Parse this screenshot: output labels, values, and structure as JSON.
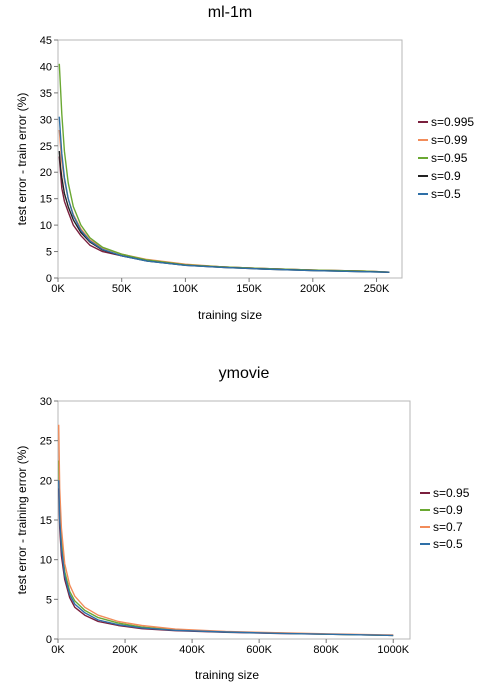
{
  "chart_data": [
    {
      "type": "line",
      "title": "ml-1m",
      "xlabel": "training size",
      "ylabel": "test error - train error (%)",
      "xlim": [
        0,
        270000
      ],
      "ylim": [
        0,
        45
      ],
      "xticks": [
        0,
        50000,
        100000,
        150000,
        200000,
        250000
      ],
      "xtick_labels": [
        "0K",
        "50K",
        "100K",
        "150K",
        "200K",
        "250K"
      ],
      "yticks": [
        0,
        5,
        10,
        15,
        20,
        25,
        30,
        35,
        40,
        45
      ],
      "ytick_labels": [
        "0",
        "5",
        "10",
        "15",
        "20",
        "25",
        "30",
        "35",
        "40",
        "45"
      ],
      "grid": false,
      "legend_position": "right",
      "series": [
        {
          "name": "s=0.995",
          "color": "#7a1f3d",
          "x": [
            1000,
            2000,
            3000,
            5000,
            8000,
            12000,
            18000,
            25000,
            35000,
            50000,
            70000,
            100000,
            130000,
            160000,
            200000,
            240000,
            260000
          ],
          "y": [
            23,
            20,
            17,
            14.5,
            12.5,
            10,
            8,
            6.2,
            5,
            4.2,
            3.3,
            2.5,
            2.1,
            1.8,
            1.5,
            1.3,
            1.1
          ]
        },
        {
          "name": "s=0.99",
          "color": "#f28c5a",
          "x": [
            1000,
            2000,
            3000,
            5000,
            8000,
            12000,
            18000,
            25000,
            35000,
            50000,
            70000,
            100000,
            130000,
            160000,
            200000,
            240000,
            260000
          ],
          "y": [
            28,
            25,
            22,
            18.5,
            15,
            12,
            9.3,
            7.2,
            5.7,
            4.5,
            3.5,
            2.6,
            2.1,
            1.8,
            1.5,
            1.3,
            1.1
          ]
        },
        {
          "name": "s=0.95",
          "color": "#6aa832",
          "x": [
            1000,
            2000,
            3000,
            5000,
            8000,
            12000,
            18000,
            25000,
            35000,
            50000,
            70000,
            100000,
            130000,
            160000,
            200000,
            240000,
            260000
          ],
          "y": [
            40.5,
            36,
            31,
            24,
            18,
            13.5,
            10,
            7.6,
            5.8,
            4.5,
            3.4,
            2.5,
            2.1,
            1.8,
            1.5,
            1.3,
            1.1
          ]
        },
        {
          "name": "s=0.9",
          "color": "#222222",
          "x": [
            1000,
            2000,
            3000,
            5000,
            8000,
            12000,
            18000,
            25000,
            35000,
            50000,
            70000,
            100000,
            130000,
            160000,
            200000,
            240000,
            260000
          ],
          "y": [
            24,
            21,
            19,
            16,
            13.5,
            11,
            8.6,
            6.8,
            5.3,
            4.2,
            3.2,
            2.4,
            2,
            1.7,
            1.4,
            1.2,
            1.1
          ]
        },
        {
          "name": "s=0.5",
          "color": "#2e6fa7",
          "x": [
            1000,
            2000,
            3000,
            5000,
            8000,
            12000,
            18000,
            25000,
            35000,
            50000,
            70000,
            100000,
            130000,
            160000,
            200000,
            240000,
            260000
          ],
          "y": [
            30.5,
            27,
            23.5,
            19,
            15,
            11.8,
            9,
            7,
            5.4,
            4.2,
            3.2,
            2.4,
            2,
            1.7,
            1.4,
            1.2,
            1.1
          ]
        }
      ]
    },
    {
      "type": "line",
      "title": "ymovie",
      "xlabel": "training size",
      "ylabel": "test error - training error (%)",
      "xlim": [
        0,
        1050000
      ],
      "ylim": [
        0,
        30
      ],
      "xticks": [
        0,
        200000,
        400000,
        600000,
        800000,
        1000000
      ],
      "xtick_labels": [
        "0K",
        "200K",
        "400K",
        "600K",
        "800K",
        "1000K"
      ],
      "yticks": [
        0,
        5,
        10,
        15,
        20,
        25,
        30
      ],
      "ytick_labels": [
        "0",
        "5",
        "10",
        "15",
        "20",
        "25",
        "30"
      ],
      "grid": false,
      "legend_position": "right",
      "series": [
        {
          "name": "s=0.95",
          "color": "#7a1f3d",
          "x": [
            2000,
            5000,
            10000,
            20000,
            35000,
            50000,
            80000,
            120000,
            180000,
            250000,
            350000,
            500000,
            650000,
            800000,
            1000000
          ],
          "y": [
            19,
            14,
            10.5,
            7.5,
            5.2,
            4,
            3,
            2.2,
            1.7,
            1.3,
            1.05,
            0.85,
            0.7,
            0.6,
            0.45
          ]
        },
        {
          "name": "s=0.9",
          "color": "#6aa832",
          "x": [
            2000,
            5000,
            10000,
            20000,
            35000,
            50000,
            80000,
            120000,
            180000,
            250000,
            350000,
            500000,
            650000,
            800000,
            1000000
          ],
          "y": [
            22.5,
            16.5,
            12.5,
            8.5,
            6,
            4.8,
            3.6,
            2.7,
            2,
            1.5,
            1.15,
            0.9,
            0.75,
            0.6,
            0.45
          ]
        },
        {
          "name": "s=0.7",
          "color": "#f28c5a",
          "x": [
            2000,
            5000,
            10000,
            20000,
            35000,
            50000,
            80000,
            120000,
            180000,
            250000,
            350000,
            500000,
            650000,
            800000,
            1000000
          ],
          "y": [
            27,
            19,
            14,
            9.5,
            6.8,
            5.4,
            4,
            3,
            2.2,
            1.7,
            1.25,
            0.95,
            0.8,
            0.65,
            0.5
          ]
        },
        {
          "name": "s=0.5",
          "color": "#2e6fa7",
          "x": [
            2000,
            5000,
            10000,
            20000,
            35000,
            50000,
            80000,
            120000,
            180000,
            250000,
            350000,
            500000,
            650000,
            800000,
            1000000
          ],
          "y": [
            20,
            15,
            11.5,
            8,
            5.6,
            4.4,
            3.3,
            2.4,
            1.8,
            1.4,
            1.1,
            0.88,
            0.72,
            0.6,
            0.45
          ]
        }
      ]
    }
  ]
}
